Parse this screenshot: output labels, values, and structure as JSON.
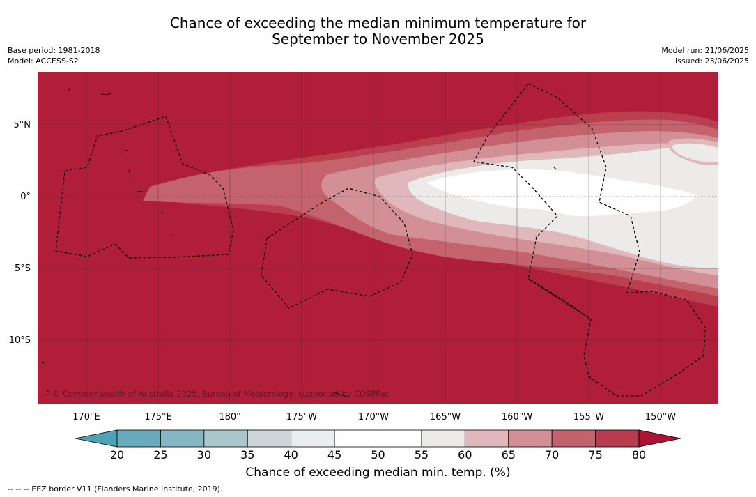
{
  "title_line1": "Chance of exceeding the median minimum temperature for",
  "title_line2": "September to November 2025",
  "meta": {
    "base_period": "Base period: 1981-2018",
    "model": "Model: ACCESS-S2",
    "model_run": "Model run: 21/06/2025",
    "issued": "Issued: 23/06/2025"
  },
  "map": {
    "lat_labels": [
      "5°N",
      "0°",
      "5°S",
      "10°S"
    ],
    "lon_labels": [
      "170°E",
      "175°E",
      "180°",
      "175°W",
      "170°W",
      "165°W",
      "160°W",
      "155°W",
      "150°W"
    ],
    "copyright": "© Commonwealth of Australia 2025, Bureau of Meteorology, supported by COSPPac",
    "background_color": "#b01e3a"
  },
  "colorbar": {
    "ticks": [
      "20",
      "25",
      "30",
      "35",
      "40",
      "45",
      "50",
      "55",
      "60",
      "65",
      "70",
      "75",
      "80"
    ],
    "colors": [
      "#69abbd",
      "#86b5c3",
      "#a8c6cc",
      "#ccd6d8",
      "#e9eef1",
      "#ffffff",
      "#ffffff",
      "#ecebe9",
      "#e0b8bc",
      "#d38f96",
      "#c4636e",
      "#b83c4d"
    ],
    "low_extend_color": "#4fa3b4",
    "high_extend_color": "#aa1535",
    "label": "Chance of exceeding median min. temp. (%)"
  },
  "footnote": "-- -- -- EEZ border V11 (Flanders Marine Institute, 2019)."
}
